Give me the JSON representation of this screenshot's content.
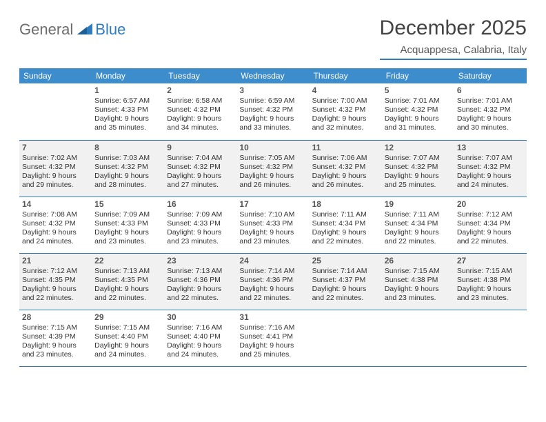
{
  "logo": {
    "word1": "General",
    "word2": "Blue"
  },
  "title": "December 2025",
  "location": "Acquappesa, Calabria, Italy",
  "colors": {
    "header_bg": "#3d8ccc",
    "header_text": "#ffffff",
    "row_alt_bg": "#f1f1f1",
    "row_bg": "#ffffff",
    "border": "#2e7bc0",
    "logo_gray": "#6b6b6b",
    "logo_blue": "#2e7bc0",
    "text": "#333333"
  },
  "weekdays": [
    "Sunday",
    "Monday",
    "Tuesday",
    "Wednesday",
    "Thursday",
    "Friday",
    "Saturday"
  ],
  "weeks": [
    [
      {
        "n": "",
        "sr": "",
        "ss": "",
        "dl": ""
      },
      {
        "n": "1",
        "sr": "Sunrise: 6:57 AM",
        "ss": "Sunset: 4:33 PM",
        "dl": "Daylight: 9 hours and 35 minutes."
      },
      {
        "n": "2",
        "sr": "Sunrise: 6:58 AM",
        "ss": "Sunset: 4:32 PM",
        "dl": "Daylight: 9 hours and 34 minutes."
      },
      {
        "n": "3",
        "sr": "Sunrise: 6:59 AM",
        "ss": "Sunset: 4:32 PM",
        "dl": "Daylight: 9 hours and 33 minutes."
      },
      {
        "n": "4",
        "sr": "Sunrise: 7:00 AM",
        "ss": "Sunset: 4:32 PM",
        "dl": "Daylight: 9 hours and 32 minutes."
      },
      {
        "n": "5",
        "sr": "Sunrise: 7:01 AM",
        "ss": "Sunset: 4:32 PM",
        "dl": "Daylight: 9 hours and 31 minutes."
      },
      {
        "n": "6",
        "sr": "Sunrise: 7:01 AM",
        "ss": "Sunset: 4:32 PM",
        "dl": "Daylight: 9 hours and 30 minutes."
      }
    ],
    [
      {
        "n": "7",
        "sr": "Sunrise: 7:02 AM",
        "ss": "Sunset: 4:32 PM",
        "dl": "Daylight: 9 hours and 29 minutes."
      },
      {
        "n": "8",
        "sr": "Sunrise: 7:03 AM",
        "ss": "Sunset: 4:32 PM",
        "dl": "Daylight: 9 hours and 28 minutes."
      },
      {
        "n": "9",
        "sr": "Sunrise: 7:04 AM",
        "ss": "Sunset: 4:32 PM",
        "dl": "Daylight: 9 hours and 27 minutes."
      },
      {
        "n": "10",
        "sr": "Sunrise: 7:05 AM",
        "ss": "Sunset: 4:32 PM",
        "dl": "Daylight: 9 hours and 26 minutes."
      },
      {
        "n": "11",
        "sr": "Sunrise: 7:06 AM",
        "ss": "Sunset: 4:32 PM",
        "dl": "Daylight: 9 hours and 26 minutes."
      },
      {
        "n": "12",
        "sr": "Sunrise: 7:07 AM",
        "ss": "Sunset: 4:32 PM",
        "dl": "Daylight: 9 hours and 25 minutes."
      },
      {
        "n": "13",
        "sr": "Sunrise: 7:07 AM",
        "ss": "Sunset: 4:32 PM",
        "dl": "Daylight: 9 hours and 24 minutes."
      }
    ],
    [
      {
        "n": "14",
        "sr": "Sunrise: 7:08 AM",
        "ss": "Sunset: 4:32 PM",
        "dl": "Daylight: 9 hours and 24 minutes."
      },
      {
        "n": "15",
        "sr": "Sunrise: 7:09 AM",
        "ss": "Sunset: 4:33 PM",
        "dl": "Daylight: 9 hours and 23 minutes."
      },
      {
        "n": "16",
        "sr": "Sunrise: 7:09 AM",
        "ss": "Sunset: 4:33 PM",
        "dl": "Daylight: 9 hours and 23 minutes."
      },
      {
        "n": "17",
        "sr": "Sunrise: 7:10 AM",
        "ss": "Sunset: 4:33 PM",
        "dl": "Daylight: 9 hours and 23 minutes."
      },
      {
        "n": "18",
        "sr": "Sunrise: 7:11 AM",
        "ss": "Sunset: 4:34 PM",
        "dl": "Daylight: 9 hours and 22 minutes."
      },
      {
        "n": "19",
        "sr": "Sunrise: 7:11 AM",
        "ss": "Sunset: 4:34 PM",
        "dl": "Daylight: 9 hours and 22 minutes."
      },
      {
        "n": "20",
        "sr": "Sunrise: 7:12 AM",
        "ss": "Sunset: 4:34 PM",
        "dl": "Daylight: 9 hours and 22 minutes."
      }
    ],
    [
      {
        "n": "21",
        "sr": "Sunrise: 7:12 AM",
        "ss": "Sunset: 4:35 PM",
        "dl": "Daylight: 9 hours and 22 minutes."
      },
      {
        "n": "22",
        "sr": "Sunrise: 7:13 AM",
        "ss": "Sunset: 4:35 PM",
        "dl": "Daylight: 9 hours and 22 minutes."
      },
      {
        "n": "23",
        "sr": "Sunrise: 7:13 AM",
        "ss": "Sunset: 4:36 PM",
        "dl": "Daylight: 9 hours and 22 minutes."
      },
      {
        "n": "24",
        "sr": "Sunrise: 7:14 AM",
        "ss": "Sunset: 4:36 PM",
        "dl": "Daylight: 9 hours and 22 minutes."
      },
      {
        "n": "25",
        "sr": "Sunrise: 7:14 AM",
        "ss": "Sunset: 4:37 PM",
        "dl": "Daylight: 9 hours and 22 minutes."
      },
      {
        "n": "26",
        "sr": "Sunrise: 7:15 AM",
        "ss": "Sunset: 4:38 PM",
        "dl": "Daylight: 9 hours and 23 minutes."
      },
      {
        "n": "27",
        "sr": "Sunrise: 7:15 AM",
        "ss": "Sunset: 4:38 PM",
        "dl": "Daylight: 9 hours and 23 minutes."
      }
    ],
    [
      {
        "n": "28",
        "sr": "Sunrise: 7:15 AM",
        "ss": "Sunset: 4:39 PM",
        "dl": "Daylight: 9 hours and 23 minutes."
      },
      {
        "n": "29",
        "sr": "Sunrise: 7:15 AM",
        "ss": "Sunset: 4:40 PM",
        "dl": "Daylight: 9 hours and 24 minutes."
      },
      {
        "n": "30",
        "sr": "Sunrise: 7:16 AM",
        "ss": "Sunset: 4:40 PM",
        "dl": "Daylight: 9 hours and 24 minutes."
      },
      {
        "n": "31",
        "sr": "Sunrise: 7:16 AM",
        "ss": "Sunset: 4:41 PM",
        "dl": "Daylight: 9 hours and 25 minutes."
      },
      {
        "n": "",
        "sr": "",
        "ss": "",
        "dl": ""
      },
      {
        "n": "",
        "sr": "",
        "ss": "",
        "dl": ""
      },
      {
        "n": "",
        "sr": "",
        "ss": "",
        "dl": ""
      }
    ]
  ]
}
